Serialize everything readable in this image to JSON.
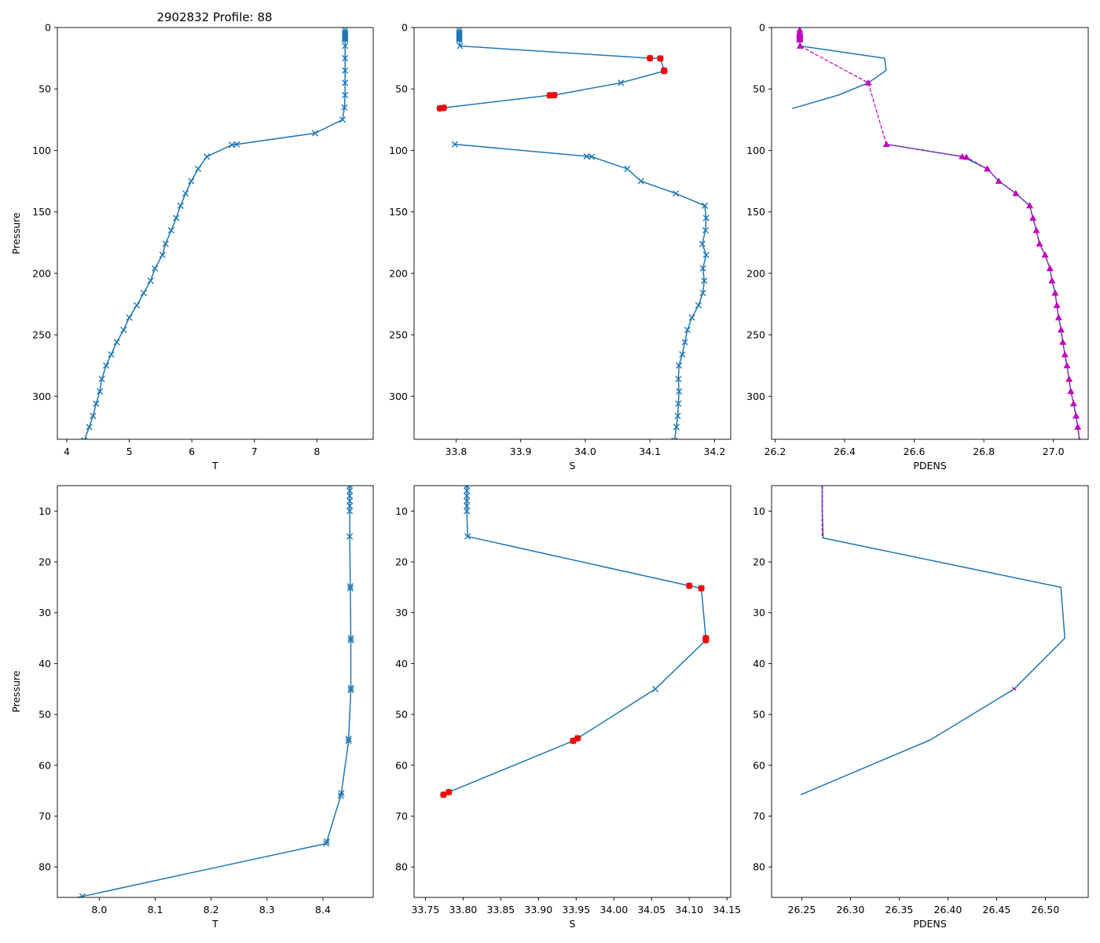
{
  "figure_title": "2902832 Profile: 88",
  "colors": {
    "line": "#1f77b4",
    "flag": "#ff0000",
    "density_marker": "#bf00bf",
    "axes": "#000000"
  },
  "chart_data": [
    {
      "id": "top-t",
      "type": "line",
      "xlabel": "T",
      "ylabel": "Pressure",
      "title": "2902832 Profile: 88",
      "xlim": [
        3.85,
        8.9
      ],
      "ylim": [
        335,
        0
      ],
      "y_inverted": true,
      "xticks": [
        4,
        5,
        6,
        7,
        8
      ],
      "yticks": [
        0,
        50,
        100,
        150,
        200,
        250,
        300
      ],
      "series": [
        {
          "name": "T",
          "marker": "x",
          "points": [
            [
              8.45,
              2
            ],
            [
              8.45,
              4
            ],
            [
              8.45,
              5
            ],
            [
              8.45,
              6
            ],
            [
              8.45,
              7
            ],
            [
              8.45,
              8
            ],
            [
              8.45,
              9
            ],
            [
              8.45,
              10
            ],
            [
              8.45,
              15
            ],
            [
              8.45,
              25
            ],
            [
              8.45,
              35
            ],
            [
              8.45,
              45
            ],
            [
              8.45,
              55
            ],
            [
              8.44,
              65
            ],
            [
              8.41,
              75
            ],
            [
              7.97,
              86
            ],
            [
              6.72,
              95
            ],
            [
              6.64,
              95.5
            ],
            [
              6.24,
              105
            ],
            [
              6.1,
              115
            ],
            [
              5.99,
              125
            ],
            [
              5.9,
              135
            ],
            [
              5.82,
              145
            ],
            [
              5.75,
              155
            ],
            [
              5.67,
              165
            ],
            [
              5.58,
              176
            ],
            [
              5.53,
              185
            ],
            [
              5.41,
              196
            ],
            [
              5.34,
              206
            ],
            [
              5.23,
              216
            ],
            [
              5.12,
              226
            ],
            [
              5.0,
              236
            ],
            [
              4.91,
              246
            ],
            [
              4.8,
              256
            ],
            [
              4.71,
              266
            ],
            [
              4.63,
              275
            ],
            [
              4.56,
              286
            ],
            [
              4.53,
              296
            ],
            [
              4.47,
              306
            ],
            [
              4.42,
              316
            ],
            [
              4.36,
              325
            ],
            [
              4.28,
              336
            ]
          ]
        }
      ],
      "flagged": []
    },
    {
      "id": "top-s",
      "type": "line",
      "xlabel": "S",
      "ylabel": "",
      "xlim": [
        33.735,
        34.225
      ],
      "ylim": [
        335,
        0
      ],
      "y_inverted": true,
      "xticks": [
        33.8,
        33.9,
        34.0,
        34.1,
        34.2
      ],
      "yticks": [
        0,
        50,
        100,
        150,
        200,
        250,
        300
      ],
      "series": [
        {
          "name": "S upper",
          "marker": "x",
          "points": [
            [
              33.805,
              2
            ],
            [
              33.805,
              4
            ],
            [
              33.805,
              5
            ],
            [
              33.805,
              6
            ],
            [
              33.805,
              7
            ],
            [
              33.805,
              8
            ],
            [
              33.805,
              9
            ],
            [
              33.805,
              10
            ],
            [
              33.806,
              15
            ],
            [
              34.1,
              25
            ],
            [
              34.116,
              25.2
            ],
            [
              34.122,
              35
            ],
            [
              34.122,
              35.4
            ],
            [
              34.055,
              45
            ],
            [
              33.952,
              55
            ],
            [
              33.945,
              55.2
            ],
            [
              33.781,
              65.3
            ],
            [
              33.775,
              65.8
            ]
          ]
        },
        {
          "name": "S lower",
          "marker": "x",
          "points": [
            [
              33.798,
              95
            ],
            [
              34.002,
              104.8
            ],
            [
              34.01,
              105.2
            ],
            [
              34.065,
              115
            ],
            [
              34.086,
              125
            ],
            [
              34.14,
              135
            ],
            [
              34.185,
              145
            ],
            [
              34.187,
              155
            ],
            [
              34.186,
              165
            ],
            [
              34.181,
              176
            ],
            [
              34.187,
              185
            ],
            [
              34.182,
              196
            ],
            [
              34.184,
              206
            ],
            [
              34.182,
              216
            ],
            [
              34.175,
              226
            ],
            [
              34.165,
              236
            ],
            [
              34.158,
              246
            ],
            [
              34.154,
              256
            ],
            [
              34.15,
              266
            ],
            [
              34.145,
              275
            ],
            [
              34.144,
              286
            ],
            [
              34.145,
              296
            ],
            [
              34.144,
              306
            ],
            [
              34.143,
              316
            ],
            [
              34.141,
              325
            ],
            [
              34.138,
              336
            ]
          ]
        }
      ],
      "flagged": [
        [
          34.1,
          25
        ],
        [
          34.116,
          25.2
        ],
        [
          34.122,
          35
        ],
        [
          34.122,
          35.4
        ],
        [
          33.952,
          55
        ],
        [
          33.945,
          55.2
        ],
        [
          33.781,
          65.3
        ],
        [
          33.775,
          65.8
        ]
      ]
    },
    {
      "id": "top-pdens",
      "type": "line",
      "xlabel": "PDENS",
      "ylabel": "",
      "xlim": [
        26.19,
        27.1
      ],
      "ylim": [
        335,
        0
      ],
      "y_inverted": true,
      "xticks": [
        26.2,
        26.4,
        26.6,
        26.8,
        27.0
      ],
      "yticks": [
        0,
        50,
        100,
        150,
        200,
        250,
        300
      ],
      "series": [
        {
          "name": "PDENS upper",
          "marker": "none",
          "points": [
            [
              26.271,
              2
            ],
            [
              26.271,
              10
            ],
            [
              26.272,
              15
            ],
            [
              26.515,
              25
            ],
            [
              26.519,
              35
            ],
            [
              26.468,
              45
            ],
            [
              26.382,
              55
            ],
            [
              26.249,
              66
            ]
          ]
        },
        {
          "name": "PDENS lower",
          "marker": "none",
          "points": [
            [
              26.52,
              95
            ],
            [
              26.738,
              105
            ],
            [
              26.81,
              115
            ],
            [
              26.843,
              125
            ],
            [
              26.892,
              135
            ],
            [
              26.932,
              145
            ],
            [
              26.941,
              155
            ],
            [
              26.951,
              165
            ],
            [
              26.96,
              176
            ],
            [
              26.976,
              185
            ],
            [
              26.99,
              196
            ],
            [
              26.996,
              206
            ],
            [
              27.005,
              216
            ],
            [
              27.01,
              226
            ],
            [
              27.015,
              236
            ],
            [
              27.022,
              246
            ],
            [
              27.027,
              256
            ],
            [
              27.033,
              266
            ],
            [
              27.039,
              275
            ],
            [
              27.045,
              286
            ],
            [
              27.05,
              296
            ],
            [
              27.058,
              306
            ],
            [
              27.065,
              316
            ],
            [
              27.07,
              325
            ],
            [
              27.075,
              336
            ]
          ]
        }
      ],
      "markers": {
        "shape": "triangle",
        "points": [
          [
            26.271,
            2
          ],
          [
            26.271,
            4
          ],
          [
            26.271,
            5
          ],
          [
            26.271,
            6
          ],
          [
            26.271,
            7
          ],
          [
            26.271,
            8
          ],
          [
            26.271,
            9
          ],
          [
            26.271,
            10
          ],
          [
            26.272,
            15
          ],
          [
            26.468,
            45
          ],
          [
            26.52,
            95
          ],
          [
            26.738,
            105
          ],
          [
            26.75,
            105.5
          ],
          [
            26.81,
            115
          ],
          [
            26.843,
            125
          ],
          [
            26.892,
            135
          ],
          [
            26.932,
            145
          ],
          [
            26.941,
            155
          ],
          [
            26.951,
            165
          ],
          [
            26.96,
            176
          ],
          [
            26.976,
            185
          ],
          [
            26.99,
            196
          ],
          [
            26.996,
            206
          ],
          [
            27.005,
            216
          ],
          [
            27.01,
            226
          ],
          [
            27.015,
            236
          ],
          [
            27.022,
            246
          ],
          [
            27.027,
            256
          ],
          [
            27.033,
            266
          ],
          [
            27.039,
            275
          ],
          [
            27.045,
            286
          ],
          [
            27.05,
            296
          ],
          [
            27.058,
            306
          ],
          [
            27.065,
            316
          ],
          [
            27.07,
            325
          ],
          [
            27.075,
            336
          ]
        ]
      }
    },
    {
      "id": "bottom-t",
      "type": "line",
      "xlabel": "T",
      "ylabel": "Pressure",
      "xlim": [
        7.925,
        8.49
      ],
      "ylim": [
        86,
        5
      ],
      "y_inverted": true,
      "xticks": [
        8.0,
        8.1,
        8.2,
        8.3,
        8.4
      ],
      "yticks": [
        10,
        20,
        30,
        40,
        50,
        60,
        70,
        80
      ],
      "series": [
        {
          "name": "T",
          "marker": "x",
          "points": [
            [
              8.448,
              5
            ],
            [
              8.448,
              6
            ],
            [
              8.448,
              7
            ],
            [
              8.448,
              8
            ],
            [
              8.448,
              9
            ],
            [
              8.448,
              10
            ],
            [
              8.448,
              15
            ],
            [
              8.449,
              24.8
            ],
            [
              8.449,
              25.2
            ],
            [
              8.45,
              35
            ],
            [
              8.45,
              35.4
            ],
            [
              8.45,
              44.8
            ],
            [
              8.45,
              45.2
            ],
            [
              8.446,
              54.8
            ],
            [
              8.446,
              55.2
            ],
            [
              8.433,
              65.5
            ],
            [
              8.432,
              66
            ],
            [
              8.407,
              75
            ],
            [
              8.406,
              75.4
            ],
            [
              7.97,
              85.8
            ],
            [
              7.94,
              86.5
            ]
          ]
        }
      ],
      "flagged": []
    },
    {
      "id": "bottom-s",
      "type": "line",
      "xlabel": "S",
      "ylabel": "",
      "xlim": [
        33.735,
        34.155
      ],
      "ylim": [
        86,
        5
      ],
      "y_inverted": true,
      "xticks": [
        33.75,
        33.8,
        33.85,
        33.9,
        33.95,
        34.0,
        34.05,
        34.1,
        34.15
      ],
      "yticks": [
        10,
        20,
        30,
        40,
        50,
        60,
        70,
        80
      ],
      "series": [
        {
          "name": "S",
          "marker": "x",
          "points": [
            [
              33.805,
              5
            ],
            [
              33.805,
              6
            ],
            [
              33.805,
              7
            ],
            [
              33.805,
              8
            ],
            [
              33.805,
              9
            ],
            [
              33.805,
              10
            ],
            [
              33.806,
              15
            ],
            [
              34.1,
              24.7
            ],
            [
              34.116,
              25.2
            ],
            [
              34.122,
              35
            ],
            [
              34.122,
              35.4
            ],
            [
              34.055,
              45
            ],
            [
              33.952,
              54.7
            ],
            [
              33.946,
              55.2
            ],
            [
              33.781,
              65.3
            ],
            [
              33.774,
              65.8
            ]
          ]
        }
      ],
      "flagged": [
        [
          34.1,
          24.7
        ],
        [
          34.116,
          25.2
        ],
        [
          34.122,
          35
        ],
        [
          34.122,
          35.4
        ],
        [
          33.952,
          54.7
        ],
        [
          33.946,
          55.2
        ],
        [
          33.781,
          65.3
        ],
        [
          33.774,
          65.8
        ]
      ]
    },
    {
      "id": "bottom-pdens",
      "type": "line",
      "xlabel": "PDENS",
      "ylabel": "",
      "xlim": [
        26.219,
        26.544
      ],
      "ylim": [
        86,
        5
      ],
      "y_inverted": true,
      "xticks": [
        26.25,
        26.3,
        26.35,
        26.4,
        26.45,
        26.5
      ],
      "yticks": [
        10,
        20,
        30,
        40,
        50,
        60,
        70,
        80
      ],
      "series": [
        {
          "name": "PDENS",
          "marker": "none",
          "points": [
            [
              26.271,
              5
            ],
            [
              26.271,
              10
            ],
            [
              26.272,
              15.3
            ],
            [
              26.516,
              25
            ],
            [
              26.52,
              35
            ],
            [
              26.468,
              45
            ],
            [
              26.382,
              55
            ],
            [
              26.249,
              65.8
            ]
          ]
        }
      ],
      "overlay": [
        [
          26.271,
          5
        ],
        [
          26.271,
          15.3
        ]
      ],
      "overlay_tail": [
        [
          26.466,
          44.7
        ],
        [
          26.47,
          45.2
        ]
      ]
    }
  ]
}
